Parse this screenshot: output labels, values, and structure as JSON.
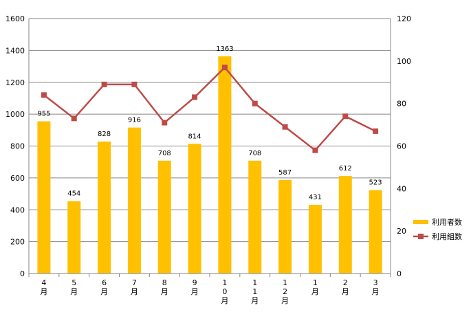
{
  "chart_data": {
    "type": "bar",
    "categories": [
      "4\n月",
      "5\n月",
      "6\n月",
      "7\n月",
      "8\n月",
      "9\n月",
      "1\n0\n月",
      "1\n1\n月",
      "1\n2\n月",
      "1\n月",
      "2\n月",
      "3\n月"
    ],
    "series": [
      {
        "name": "利用者数",
        "type": "bar",
        "axis": "left",
        "color": "#FFC000",
        "values": [
          955,
          454,
          828,
          916,
          708,
          814,
          1363,
          708,
          587,
          431,
          612,
          523
        ],
        "data_labels": [
          "955",
          "454",
          "828",
          "916",
          "708",
          "814",
          "1363",
          "708",
          "587",
          "431",
          "612",
          "523"
        ]
      },
      {
        "name": "利用組数",
        "type": "line",
        "axis": "right",
        "color": "#BE4B48",
        "marker": "square",
        "values": [
          84,
          73,
          89,
          89,
          71,
          83,
          97,
          80,
          69,
          58,
          74,
          67
        ]
      }
    ],
    "y_left": {
      "range": [
        0,
        1600
      ],
      "ticks": [
        "0",
        "200",
        "400",
        "600",
        "800",
        "1000",
        "1200",
        "1400",
        "1600"
      ]
    },
    "y_right": {
      "range": [
        0,
        120
      ],
      "ticks": [
        "0",
        "20",
        "40",
        "60",
        "80",
        "100",
        "120"
      ]
    },
    "grid": true,
    "legend_position": "right"
  }
}
